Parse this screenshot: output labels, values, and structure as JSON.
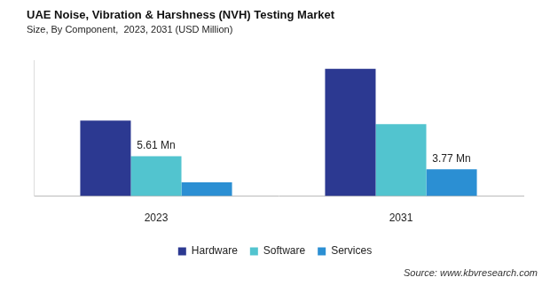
{
  "chart_data": {
    "type": "bar",
    "title": "UAE Noise, Vibration & Harshness (NVH) Testing Market",
    "subtitle": "Size, By Component,  2023, 2031 (USD Million)",
    "source": "Source: www.kbvresearch.com",
    "categories": [
      "2023",
      "2031"
    ],
    "series": [
      {
        "name": "Hardware",
        "color": "#2c3991",
        "values": [
          10.6,
          17.9
        ]
      },
      {
        "name": "Software",
        "color": "#52c4cf",
        "values": [
          5.61,
          10.1
        ],
        "data_labels": true,
        "value_labels": [
          "5.61 Mn",
          null
        ]
      },
      {
        "name": "Services",
        "color": "#2b8fd3",
        "values": [
          1.95,
          3.77
        ],
        "data_labels": true,
        "value_labels": [
          null,
          "3.77 Mn"
        ]
      }
    ],
    "ylim": [
      0,
      19
    ],
    "grid": false,
    "legend": "bottom",
    "tick_labels": "x"
  }
}
